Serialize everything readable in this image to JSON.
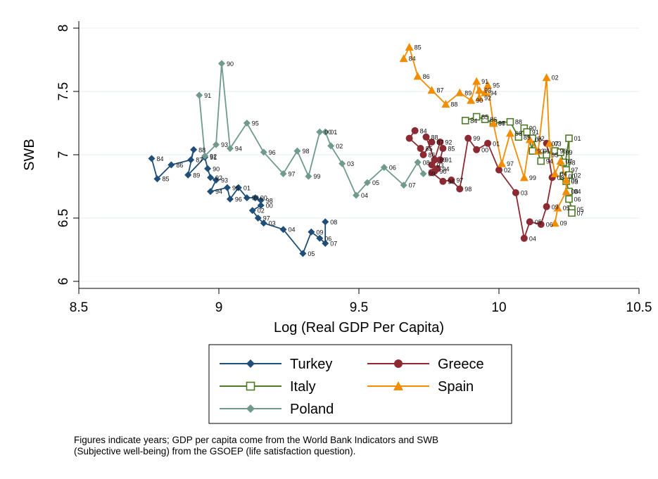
{
  "note": {
    "line1": "Figures indicate years; GDP per capita come from the World Bank Indicators and SWB",
    "line2": "(Subjective well-being) from the GSOEP (life satisfaction question)."
  },
  "colors": {
    "Turkey": "#1f4e79",
    "Greece": "#8b2a32",
    "Italy": "#4f7a28",
    "Spain": "#f28c00",
    "Poland": "#6f9a8d"
  },
  "chart_data": {
    "type": "line",
    "xlabel": "Log (Real GDP Per Capita)",
    "ylabel": "SWB",
    "xlim": [
      8.5,
      10.5
    ],
    "ylim": [
      6,
      8
    ],
    "xticks": [
      "8.5",
      "9",
      "9.5",
      "10",
      "10.5"
    ],
    "yticks": [
      "6",
      "6.5",
      "7",
      "7.5",
      "8"
    ],
    "grid": "horizontal",
    "legend_position": "bottom",
    "series": [
      {
        "name": "Turkey",
        "marker": "diamond",
        "points": [
          {
            "x": 8.76,
            "y": 6.97,
            "label": "84"
          },
          {
            "x": 8.78,
            "y": 6.81,
            "label": "85"
          },
          {
            "x": 8.83,
            "y": 6.92,
            "label": "86"
          },
          {
            "x": 8.9,
            "y": 6.96,
            "label": "87"
          },
          {
            "x": 8.91,
            "y": 7.04,
            "label": "88"
          },
          {
            "x": 8.89,
            "y": 6.84,
            "label": "89"
          },
          {
            "x": 8.95,
            "y": 6.98,
            "label": "91"
          },
          {
            "x": 8.96,
            "y": 6.89,
            "label": "90"
          },
          {
            "x": 8.97,
            "y": 6.82,
            "label": "92"
          },
          {
            "x": 8.99,
            "y": 6.8,
            "label": "93"
          },
          {
            "x": 8.97,
            "y": 6.71,
            "label": "94"
          },
          {
            "x": 9.03,
            "y": 6.74,
            "label": "95"
          },
          {
            "x": 9.04,
            "y": 6.65,
            "label": "96"
          },
          {
            "x": 9.07,
            "y": 6.74,
            "label": "01"
          },
          {
            "x": 9.1,
            "y": 6.66,
            "label": "99"
          },
          {
            "x": 9.13,
            "y": 6.66,
            "label": "00"
          },
          {
            "x": 9.15,
            "y": 6.64,
            "label": "98"
          },
          {
            "x": 9.15,
            "y": 6.6,
            "label": "00"
          },
          {
            "x": 9.12,
            "y": 6.56,
            "label": "02"
          },
          {
            "x": 9.14,
            "y": 6.5,
            "label": "97"
          },
          {
            "x": 9.16,
            "y": 6.46,
            "label": "03"
          },
          {
            "x": 9.23,
            "y": 6.41,
            "label": "04"
          },
          {
            "x": 9.3,
            "y": 6.22,
            "label": "05"
          },
          {
            "x": 9.33,
            "y": 6.39,
            "label": "09"
          },
          {
            "x": 9.36,
            "y": 6.34,
            "label": "06"
          },
          {
            "x": 9.38,
            "y": 6.3,
            "label": "07"
          },
          {
            "x": 9.38,
            "y": 6.47,
            "label": "08"
          }
        ]
      },
      {
        "name": "Greece",
        "marker": "circle",
        "points": [
          {
            "x": 9.7,
            "y": 7.19,
            "label": "84"
          },
          {
            "x": 9.68,
            "y": 7.13,
            "label": ""
          },
          {
            "x": 9.72,
            "y": 7.05,
            "label": "85"
          },
          {
            "x": 9.73,
            "y": 7.0,
            "label": "86"
          },
          {
            "x": 9.76,
            "y": 7.1,
            "label": "87"
          },
          {
            "x": 9.74,
            "y": 7.14,
            "label": "88"
          },
          {
            "x": 9.77,
            "y": 6.96,
            "label": "89"
          },
          {
            "x": 9.79,
            "y": 7.1,
            "label": "92"
          },
          {
            "x": 9.8,
            "y": 7.05,
            "label": "85"
          },
          {
            "x": 9.79,
            "y": 6.96,
            "label": "91"
          },
          {
            "x": 9.76,
            "y": 6.92,
            "label": "93"
          },
          {
            "x": 9.78,
            "y": 6.89,
            "label": "94"
          },
          {
            "x": 9.77,
            "y": 6.87,
            "label": "90"
          },
          {
            "x": 9.76,
            "y": 6.86,
            "label": ""
          },
          {
            "x": 9.8,
            "y": 6.79,
            "label": "96"
          },
          {
            "x": 9.83,
            "y": 6.8,
            "label": "97"
          },
          {
            "x": 9.86,
            "y": 6.73,
            "label": "98"
          },
          {
            "x": 9.89,
            "y": 7.13,
            "label": "99"
          },
          {
            "x": 9.92,
            "y": 7.04,
            "label": "00"
          },
          {
            "x": 9.96,
            "y": 7.09,
            "label": "01"
          },
          {
            "x": 10.0,
            "y": 6.88,
            "label": "02"
          },
          {
            "x": 10.06,
            "y": 6.7,
            "label": "03"
          },
          {
            "x": 10.09,
            "y": 6.34,
            "label": "04"
          },
          {
            "x": 10.11,
            "y": 6.47,
            "label": "05"
          },
          {
            "x": 10.15,
            "y": 6.45,
            "label": "06"
          },
          {
            "x": 10.17,
            "y": 6.59,
            "label": "09"
          },
          {
            "x": 10.19,
            "y": 6.82,
            "label": "08"
          },
          {
            "x": 10.17,
            "y": 7.09,
            "label": "07"
          }
        ]
      },
      {
        "name": "Italy",
        "marker": "hollow-square",
        "points": [
          {
            "x": 9.88,
            "y": 7.27,
            "label": "84"
          },
          {
            "x": 9.92,
            "y": 7.3,
            "label": "85"
          },
          {
            "x": 9.95,
            "y": 7.28,
            "label": "86"
          },
          {
            "x": 9.98,
            "y": 7.25,
            "label": "87"
          },
          {
            "x": 10.04,
            "y": 7.26,
            "label": "88"
          },
          {
            "x": 10.07,
            "y": 7.14,
            "label": "89"
          },
          {
            "x": 10.09,
            "y": 7.21,
            "label": "90"
          },
          {
            "x": 10.1,
            "y": 7.18,
            "label": "91"
          },
          {
            "x": 10.12,
            "y": 7.03,
            "label": "93"
          },
          {
            "x": 10.12,
            "y": 7.13,
            "label": "92"
          },
          {
            "x": 10.15,
            "y": 6.95,
            "label": "94"
          },
          {
            "x": 10.17,
            "y": 7.0,
            "label": "95"
          },
          {
            "x": 10.2,
            "y": 7.03,
            "label": "96"
          },
          {
            "x": 10.22,
            "y": 7.02,
            "label": "99"
          },
          {
            "x": 10.23,
            "y": 6.94,
            "label": "98"
          },
          {
            "x": 10.24,
            "y": 6.88,
            "label": "97"
          },
          {
            "x": 10.23,
            "y": 6.83,
            "label": "00"
          },
          {
            "x": 10.25,
            "y": 7.13,
            "label": "01"
          },
          {
            "x": 10.25,
            "y": 6.84,
            "label": "02"
          },
          {
            "x": 10.24,
            "y": 6.79,
            "label": "03"
          },
          {
            "x": 10.25,
            "y": 6.71,
            "label": "04"
          },
          {
            "x": 10.25,
            "y": 6.65,
            "label": "06"
          },
          {
            "x": 10.26,
            "y": 6.57,
            "label": "05"
          },
          {
            "x": 10.26,
            "y": 6.54,
            "label": "07"
          }
        ]
      },
      {
        "name": "Spain",
        "marker": "triangle",
        "points": [
          {
            "x": 9.66,
            "y": 7.76,
            "label": "84"
          },
          {
            "x": 9.68,
            "y": 7.85,
            "label": "85"
          },
          {
            "x": 9.71,
            "y": 7.62,
            "label": "86"
          },
          {
            "x": 9.76,
            "y": 7.51,
            "label": "87"
          },
          {
            "x": 9.81,
            "y": 7.4,
            "label": "88"
          },
          {
            "x": 9.86,
            "y": 7.49,
            "label": "89"
          },
          {
            "x": 9.9,
            "y": 7.43,
            "label": "90"
          },
          {
            "x": 9.92,
            "y": 7.58,
            "label": "91"
          },
          {
            "x": 9.93,
            "y": 7.45,
            "label": "92"
          },
          {
            "x": 9.93,
            "y": 7.51,
            "label": "93"
          },
          {
            "x": 9.95,
            "y": 7.49,
            "label": "94"
          },
          {
            "x": 9.96,
            "y": 7.55,
            "label": "95"
          },
          {
            "x": 9.98,
            "y": 7.25,
            "label": "96"
          },
          {
            "x": 10.01,
            "y": 6.93,
            "label": "97"
          },
          {
            "x": 10.04,
            "y": 7.17,
            "label": "98"
          },
          {
            "x": 10.09,
            "y": 6.82,
            "label": "99"
          },
          {
            "x": 10.11,
            "y": 7.12,
            "label": "00"
          },
          {
            "x": 10.14,
            "y": 7.03,
            "label": "01"
          },
          {
            "x": 10.17,
            "y": 7.61,
            "label": "02"
          },
          {
            "x": 10.18,
            "y": 7.09,
            "label": "03"
          },
          {
            "x": 10.2,
            "y": 6.85,
            "label": "04"
          },
          {
            "x": 10.22,
            "y": 6.95,
            "label": "07"
          },
          {
            "x": 10.24,
            "y": 6.8,
            "label": "06"
          },
          {
            "x": 10.24,
            "y": 6.71,
            "label": "08"
          },
          {
            "x": 10.21,
            "y": 6.58,
            "label": "05"
          },
          {
            "x": 10.2,
            "y": 6.46,
            "label": "09"
          }
        ]
      },
      {
        "name": "Poland",
        "marker": "diamond",
        "points": [
          {
            "x": 8.93,
            "y": 7.47,
            "label": "91"
          },
          {
            "x": 8.95,
            "y": 6.99,
            "label": "92"
          },
          {
            "x": 8.99,
            "y": 7.08,
            "label": "93"
          },
          {
            "x": 9.01,
            "y": 7.72,
            "label": "90"
          },
          {
            "x": 9.04,
            "y": 7.05,
            "label": "94"
          },
          {
            "x": 9.1,
            "y": 7.25,
            "label": "95"
          },
          {
            "x": 9.16,
            "y": 7.02,
            "label": "96"
          },
          {
            "x": 9.23,
            "y": 6.85,
            "label": "97"
          },
          {
            "x": 9.28,
            "y": 7.03,
            "label": "98"
          },
          {
            "x": 9.32,
            "y": 6.83,
            "label": "99"
          },
          {
            "x": 9.36,
            "y": 7.18,
            "label": "00"
          },
          {
            "x": 9.38,
            "y": 7.18,
            "label": "01"
          },
          {
            "x": 9.4,
            "y": 7.07,
            "label": "02"
          },
          {
            "x": 9.44,
            "y": 6.93,
            "label": "03"
          },
          {
            "x": 9.49,
            "y": 6.68,
            "label": "04"
          },
          {
            "x": 9.53,
            "y": 6.78,
            "label": "05"
          },
          {
            "x": 9.59,
            "y": 6.9,
            "label": "06"
          },
          {
            "x": 9.66,
            "y": 6.76,
            "label": "07"
          },
          {
            "x": 9.71,
            "y": 6.94,
            "label": "08"
          },
          {
            "x": 9.73,
            "y": 6.85,
            "label": "09"
          }
        ]
      }
    ]
  }
}
